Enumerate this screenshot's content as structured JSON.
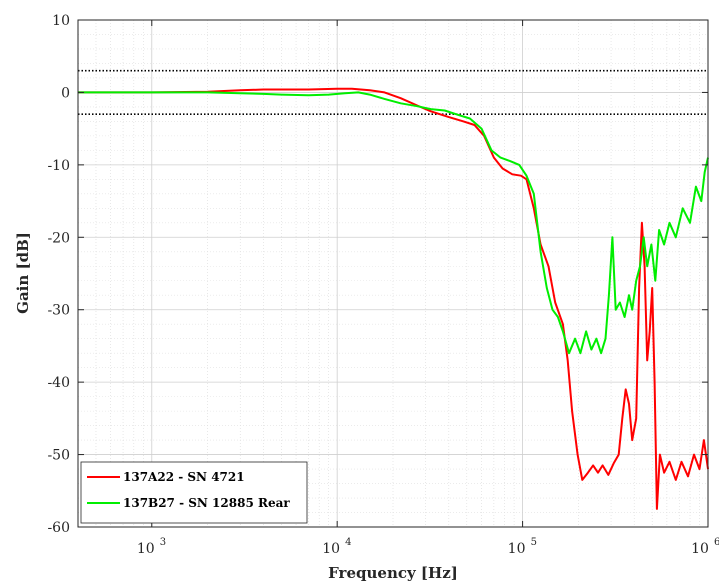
{
  "chart_data": {
    "type": "line",
    "xscale": "log",
    "xlabel": "Frequency [Hz]",
    "ylabel": "Gain [dB]",
    "xlim": [
      400,
      1000000
    ],
    "ylim": [
      -60,
      10
    ],
    "xticks": [
      {
        "value": 1000,
        "base": "10",
        "exp": "3"
      },
      {
        "value": 10000,
        "base": "10",
        "exp": "4"
      },
      {
        "value": 100000,
        "base": "10",
        "exp": "5"
      },
      {
        "value": 1000000,
        "base": "10",
        "exp": "6"
      }
    ],
    "yticks": [
      {
        "value": 10,
        "label": "10"
      },
      {
        "value": 0,
        "label": "0"
      },
      {
        "value": -10,
        "label": "-10"
      },
      {
        "value": -20,
        "label": "-20"
      },
      {
        "value": -30,
        "label": "-30"
      },
      {
        "value": -40,
        "label": "-40"
      },
      {
        "value": -50,
        "label": "-50"
      },
      {
        "value": -60,
        "label": "-60"
      }
    ],
    "grid": true,
    "legend_position": "bottom-left",
    "reference_lines": [
      3,
      -3
    ],
    "series": [
      {
        "name": "137A22 - SN 4721",
        "color": "#ff0000",
        "points": [
          [
            400,
            0
          ],
          [
            1000,
            0
          ],
          [
            2000,
            0.1
          ],
          [
            3000,
            0.3
          ],
          [
            4000,
            0.4
          ],
          [
            5000,
            0.4
          ],
          [
            7000,
            0.4
          ],
          [
            10000,
            0.5
          ],
          [
            12000,
            0.5
          ],
          [
            15000,
            0.3
          ],
          [
            18000,
            0
          ],
          [
            22000,
            -0.8
          ],
          [
            27000,
            -1.8
          ],
          [
            32000,
            -2.6
          ],
          [
            40000,
            -3.4
          ],
          [
            48000,
            -4
          ],
          [
            55000,
            -4.5
          ],
          [
            62000,
            -6
          ],
          [
            70000,
            -9
          ],
          [
            78000,
            -10.5
          ],
          [
            88000,
            -11.3
          ],
          [
            98000,
            -11.5
          ],
          [
            105000,
            -12
          ],
          [
            115000,
            -16
          ],
          [
            125000,
            -21
          ],
          [
            138000,
            -24
          ],
          [
            150000,
            -29
          ],
          [
            165000,
            -32
          ],
          [
            175000,
            -37
          ],
          [
            185000,
            -44
          ],
          [
            198000,
            -50
          ],
          [
            210000,
            -53.5
          ],
          [
            225000,
            -52.5
          ],
          [
            240000,
            -51.5
          ],
          [
            255000,
            -52.5
          ],
          [
            270000,
            -51.5
          ],
          [
            290000,
            -52.8
          ],
          [
            310000,
            -51.2
          ],
          [
            330000,
            -50
          ],
          [
            345000,
            -45
          ],
          [
            360000,
            -41
          ],
          [
            375000,
            -43
          ],
          [
            390000,
            -48
          ],
          [
            410000,
            -45
          ],
          [
            425000,
            -27
          ],
          [
            440000,
            -18
          ],
          [
            455000,
            -24
          ],
          [
            470000,
            -37
          ],
          [
            485000,
            -33
          ],
          [
            500000,
            -27
          ],
          [
            515000,
            -40
          ],
          [
            530000,
            -57.5
          ],
          [
            550000,
            -50
          ],
          [
            580000,
            -52.5
          ],
          [
            620000,
            -51
          ],
          [
            670000,
            -53.5
          ],
          [
            720000,
            -51
          ],
          [
            780000,
            -53
          ],
          [
            840000,
            -50
          ],
          [
            900000,
            -52
          ],
          [
            950000,
            -48
          ],
          [
            1000000,
            -52
          ]
        ]
      },
      {
        "name": "137B27 - SN 12885 Rear",
        "color": "#00ee00",
        "points": [
          [
            400,
            0
          ],
          [
            1000,
            0
          ],
          [
            2000,
            0
          ],
          [
            3000,
            -0.1
          ],
          [
            4000,
            -0.2
          ],
          [
            5000,
            -0.3
          ],
          [
            7000,
            -0.4
          ],
          [
            9000,
            -0.3
          ],
          [
            11000,
            -0.1
          ],
          [
            13000,
            0
          ],
          [
            15000,
            -0.3
          ],
          [
            18000,
            -0.9
          ],
          [
            22000,
            -1.5
          ],
          [
            27000,
            -1.9
          ],
          [
            32000,
            -2.3
          ],
          [
            38000,
            -2.5
          ],
          [
            45000,
            -3.1
          ],
          [
            52000,
            -3.6
          ],
          [
            60000,
            -5
          ],
          [
            68000,
            -8
          ],
          [
            76000,
            -9
          ],
          [
            86000,
            -9.5
          ],
          [
            96000,
            -10
          ],
          [
            105000,
            -11.5
          ],
          [
            115000,
            -14
          ],
          [
            125000,
            -22
          ],
          [
            135000,
            -27
          ],
          [
            145000,
            -30
          ],
          [
            155000,
            -31
          ],
          [
            165000,
            -33
          ],
          [
            178000,
            -36
          ],
          [
            192000,
            -34
          ],
          [
            205000,
            -36
          ],
          [
            220000,
            -33
          ],
          [
            235000,
            -35.5
          ],
          [
            250000,
            -34
          ],
          [
            265000,
            -36
          ],
          [
            280000,
            -34
          ],
          [
            292000,
            -28
          ],
          [
            305000,
            -20
          ],
          [
            318000,
            -30
          ],
          [
            335000,
            -29
          ],
          [
            355000,
            -31
          ],
          [
            375000,
            -28
          ],
          [
            390000,
            -30
          ],
          [
            410000,
            -26
          ],
          [
            430000,
            -24
          ],
          [
            450000,
            -20
          ],
          [
            470000,
            -24
          ],
          [
            495000,
            -21
          ],
          [
            520000,
            -26
          ],
          [
            545000,
            -19
          ],
          [
            580000,
            -21
          ],
          [
            620000,
            -18
          ],
          [
            670000,
            -20
          ],
          [
            730000,
            -16
          ],
          [
            800000,
            -18
          ],
          [
            860000,
            -13
          ],
          [
            920000,
            -15
          ],
          [
            960000,
            -11
          ],
          [
            1000000,
            -9
          ]
        ]
      }
    ]
  }
}
